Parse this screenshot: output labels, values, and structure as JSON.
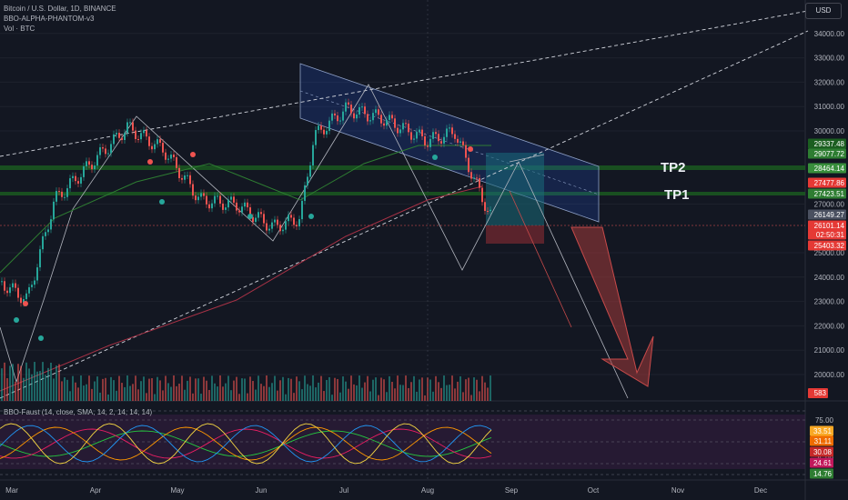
{
  "header": {
    "symbol_line": "Bitcoin / U.S. Dollar, 1D, BINANCE",
    "indicator_line": "BBO-ALPHA-PHANTOM-v3",
    "volume_line": "Vol · BTC"
  },
  "currency_button": "USD",
  "annotations": {
    "tp2": "TP2",
    "tp1": "TP1"
  },
  "oscillator_label": "BBO-Faust (14, close, SMA, 14, 2, 14, 14, 14)",
  "price_axis": {
    "ticks": [
      "34000.00",
      "33000.00",
      "32000.00",
      "31000.00",
      "30000.00",
      "27000.00",
      "25000.00",
      "24000.00",
      "23000.00",
      "22000.00",
      "21000.00",
      "20000.00"
    ],
    "tick_values": [
      34000,
      33000,
      32000,
      31000,
      30000,
      27000,
      25000,
      24000,
      23000,
      22000,
      21000,
      20000
    ]
  },
  "price_tags": [
    {
      "text": "29337.48",
      "color": "#1b5e20"
    },
    {
      "text": "29077.72",
      "color": "#2e7d32"
    },
    {
      "text": "28464.14",
      "color": "#388e3c"
    },
    {
      "text": "27477.86",
      "color": "#e53935"
    },
    {
      "text": "27423.51",
      "color": "#2e7d32"
    },
    {
      "text": "26149.27",
      "color": "#4a5060"
    },
    {
      "text": "26101.14",
      "color": "#e53935"
    },
    {
      "text": "02:50:31",
      "color": "#e53935"
    },
    {
      "text": "25403.32",
      "color": "#e53935"
    }
  ],
  "volume_tag": {
    "text": "583",
    "color": "#e53935"
  },
  "oscillator_axis": {
    "ticks": [
      "75.00",
      "25.00"
    ]
  },
  "oscillator_tags": [
    {
      "text": "33.51",
      "color": "#f9a825"
    },
    {
      "text": "31.11",
      "color": "#ef6c00"
    },
    {
      "text": "30.08",
      "color": "#c62828"
    },
    {
      "text": "24.61",
      "color": "#c2185b"
    },
    {
      "text": "14.76",
      "color": "#2e7d32"
    }
  ],
  "time_axis": [
    "Mar",
    "Apr",
    "May",
    "Jun",
    "Jul",
    "Aug",
    "Sep",
    "Oct",
    "Nov",
    "Dec"
  ],
  "colors": {
    "up": "#26a69a",
    "down": "#ef5350",
    "tp_line": "#1b5e20",
    "channel": "#2962ff",
    "dashed": "#d1d4dc",
    "arrow": "#a23a3a"
  }
}
